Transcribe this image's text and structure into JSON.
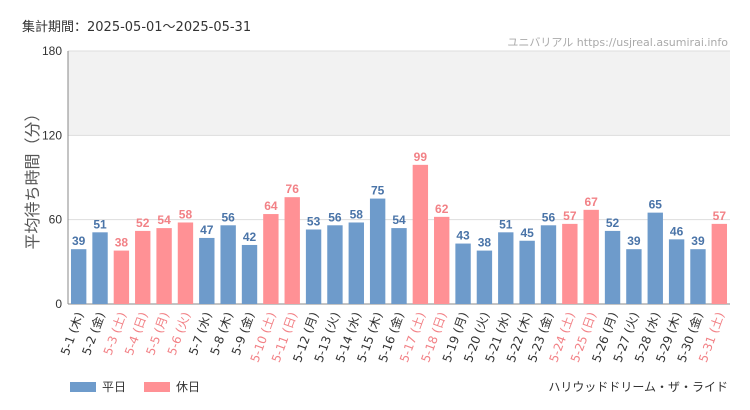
{
  "header": {
    "period": "集計期間：2025-05-01～2025-05-31",
    "brand": "ユニバリアル https://usjreal.asumirai.info"
  },
  "legend": {
    "weekday": "平日",
    "holiday": "休日"
  },
  "footer": {
    "ride": "ハリウッドドリーム・ザ・ライド"
  },
  "colors": {
    "weekday": "#6e9bcb",
    "holiday": "#ff9195",
    "weekday_text": "#4a74a8",
    "holiday_text": "#f28186",
    "band": "#f2f2f2"
  },
  "chart_data": {
    "type": "bar",
    "ylabel": "平均待ち時間（分）",
    "ylim": [
      0,
      180
    ],
    "yticks": [
      0,
      60,
      120,
      180
    ],
    "highlight_band": [
      120,
      180
    ],
    "categories": [
      "5-1 (木)",
      "5-2 (金)",
      "5-3 (土)",
      "5-4 (日)",
      "5-5 (月)",
      "5-6 (火)",
      "5-7 (水)",
      "5-8 (木)",
      "5-9 (金)",
      "5-10 (土)",
      "5-11 (日)",
      "5-12 (月)",
      "5-13 (火)",
      "5-14 (水)",
      "5-15 (木)",
      "5-16 (金)",
      "5-17 (土)",
      "5-18 (日)",
      "5-19 (月)",
      "5-20 (火)",
      "5-21 (水)",
      "5-22 (木)",
      "5-23 (金)",
      "5-24 (土)",
      "5-25 (日)",
      "5-26 (月)",
      "5-27 (火)",
      "5-28 (水)",
      "5-29 (木)",
      "5-30 (金)",
      "5-31 (土)"
    ],
    "values": [
      39,
      51,
      38,
      52,
      54,
      58,
      47,
      56,
      42,
      64,
      76,
      53,
      56,
      58,
      75,
      54,
      99,
      62,
      43,
      38,
      51,
      45,
      56,
      57,
      67,
      52,
      39,
      65,
      46,
      39,
      57
    ],
    "day_type": [
      "weekday",
      "weekday",
      "holiday",
      "holiday",
      "holiday",
      "holiday",
      "weekday",
      "weekday",
      "weekday",
      "holiday",
      "holiday",
      "weekday",
      "weekday",
      "weekday",
      "weekday",
      "weekday",
      "holiday",
      "holiday",
      "weekday",
      "weekday",
      "weekday",
      "weekday",
      "weekday",
      "holiday",
      "holiday",
      "weekday",
      "weekday",
      "weekday",
      "weekday",
      "weekday",
      "holiday"
    ]
  }
}
